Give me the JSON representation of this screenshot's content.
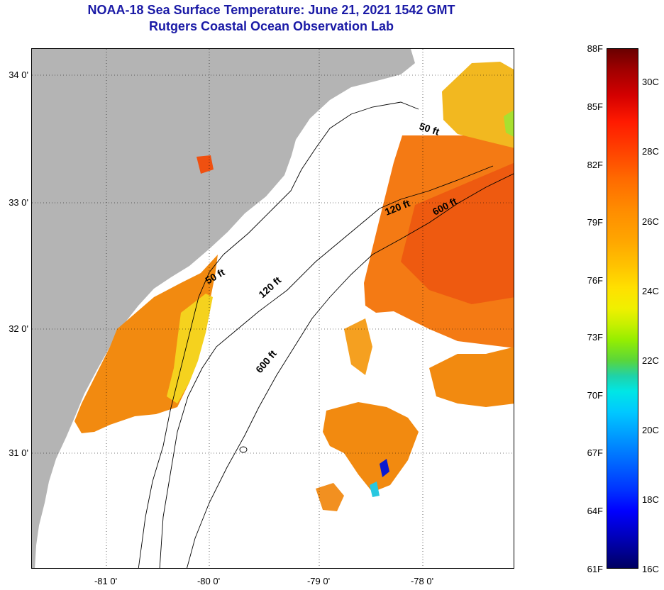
{
  "header": {
    "title_line1": "NOAA-18 Sea Surface Temperature:  June 21, 2021 1542 GMT",
    "title_line2": "Rutgers Coastal Ocean Observation Lab"
  },
  "map": {
    "lat_labels": [
      "34 0'",
      "33 0'",
      "32 0'",
      "31 0'"
    ],
    "lon_labels": [
      "-81 0'",
      "-80 0'",
      "-79 0'",
      "-78 0'"
    ],
    "contours": {
      "c50_a": "50 ft",
      "c50_b": "50 ft",
      "c120_a": "120 ft",
      "c120_b": "120 ft",
      "c600_a": "600 ft",
      "c600_b": "600 ft"
    },
    "colors": {
      "land": "#b4b4b4",
      "ocean_nodata": "#ffffff"
    }
  },
  "colorbar": {
    "fahrenheit": [
      "88F",
      "85F",
      "82F",
      "79F",
      "76F",
      "73F",
      "70F",
      "67F",
      "64F",
      "61F"
    ],
    "celsius": [
      "30C",
      "28C",
      "26C",
      "24C",
      "22C",
      "20C",
      "18C",
      "16C"
    ]
  }
}
